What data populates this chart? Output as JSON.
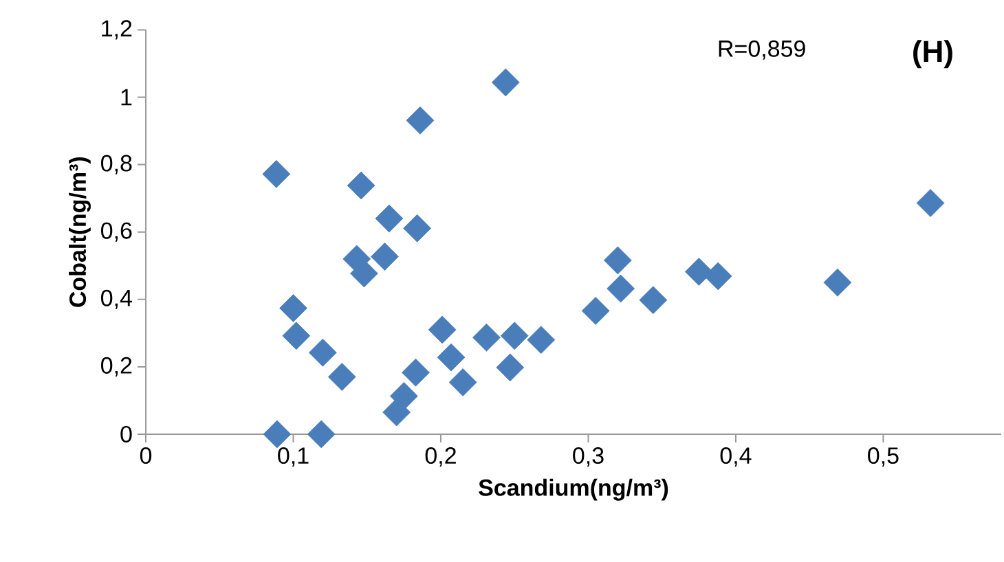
{
  "chart_data": {
    "type": "scatter",
    "xlabel": "Scandium(ng/m³)",
    "ylabel": "Cobalt(ng/m³)",
    "annotations": [
      "R=0,859",
      "(H)"
    ],
    "xlim": [
      0,
      0.58
    ],
    "ylim": [
      0,
      1.2
    ],
    "xticks": [
      0,
      {
        "value": 0.1,
        "label": "0,1"
      },
      {
        "value": 0.2,
        "label": "0,2"
      },
      {
        "value": 0.3,
        "label": "0,3"
      },
      {
        "value": 0.4,
        "label": "0,4"
      },
      {
        "value": 0.5,
        "label": "0,5"
      }
    ],
    "yticks": [
      0,
      {
        "value": 0.2,
        "label": "0,2"
      },
      {
        "value": 0.4,
        "label": "0,4"
      },
      {
        "value": 0.6,
        "label": "0,6"
      },
      {
        "value": 0.8,
        "label": "0,8"
      },
      1,
      {
        "value": 1.2,
        "label": "1,2"
      }
    ],
    "marker": "diamond",
    "grid": false,
    "series": [
      {
        "color": "#4a7ebb",
        "x": [
          0.0885,
          0.089,
          0.119,
          0.1,
          0.102,
          0.12,
          0.133,
          0.146,
          0.143,
          0.148,
          0.162,
          0.165,
          0.184,
          0.186,
          0.244,
          0.17,
          0.175,
          0.183,
          0.201,
          0.207,
          0.215,
          0.231,
          0.25,
          0.247,
          0.268,
          0.305,
          0.32,
          0.322,
          0.344,
          0.375,
          0.388,
          0.469,
          0.532
        ],
        "values": [
          0.772,
          0,
          0,
          0.374,
          0.292,
          0.242,
          0.17,
          0.738,
          0.52,
          0.477,
          0.527,
          0.64,
          0.611,
          0.931,
          1.044,
          0.065,
          0.113,
          0.183,
          0.31,
          0.228,
          0.154,
          0.287,
          0.292,
          0.198,
          0.28,
          0.366,
          0.516,
          0.432,
          0.398,
          0.482,
          0.469,
          0.45,
          0.686
        ]
      }
    ]
  }
}
